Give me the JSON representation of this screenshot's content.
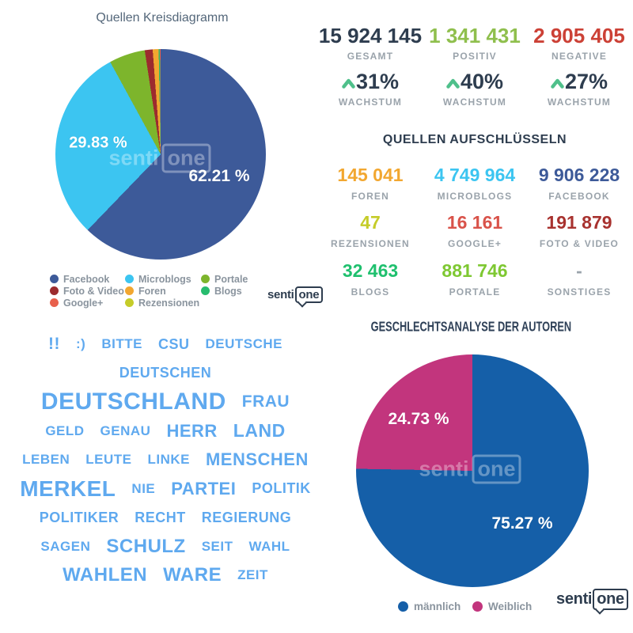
{
  "brand": {
    "part1": "senti",
    "part2": "one"
  },
  "colors": {
    "navy_text": "#2e3d4f",
    "gray_label": "#9aa3ab",
    "wordcloud_blue": "#5fa9ef",
    "growth_chevron": "#4fc08b"
  },
  "sources_chart": {
    "title": "Quellen Kreisdiagramm",
    "slice_labels": {
      "microblogs": "29.83 %",
      "facebook": "62.21 %"
    },
    "slices": [
      {
        "label": "Facebook",
        "pct": 62.21,
        "color": "#3d5a99"
      },
      {
        "label": "Microblogs",
        "pct": 29.83,
        "color": "#3cc5f1"
      },
      {
        "label": "Portale",
        "pct": 5.54,
        "color": "#7db52c"
      },
      {
        "label": "Foto & Video",
        "pct": 1.21,
        "color": "#9c2b2e"
      },
      {
        "label": "Foren",
        "pct": 0.91,
        "color": "#f2a730"
      },
      {
        "label": "Blogs",
        "pct": 0.2,
        "color": "#27bc6e"
      },
      {
        "label": "Google+",
        "pct": 0.1,
        "color": "#e8604c"
      },
      {
        "label": "Rezensionen",
        "pct": 0.0,
        "color": "#c5cc29"
      }
    ],
    "legend": {
      "col1": [
        {
          "label": "Facebook",
          "color": "#3d5a99"
        },
        {
          "label": "Foto & Video",
          "color": "#9c2b2e"
        },
        {
          "label": "Google+",
          "color": "#e8604c"
        }
      ],
      "col2": [
        {
          "label": "Microblogs",
          "color": "#3cc5f1"
        },
        {
          "label": "Foren",
          "color": "#f2a730"
        },
        {
          "label": "Rezensionen",
          "color": "#c5cc29"
        }
      ],
      "col3": [
        {
          "label": "Portale",
          "color": "#7db52c"
        },
        {
          "label": "Blogs",
          "color": "#27bc6e"
        }
      ]
    }
  },
  "stats": {
    "totals": [
      {
        "value": "15 924 145",
        "label": "GESAMT",
        "color": "#2e3d4f"
      },
      {
        "value": "1 341 431",
        "label": "POSITIV",
        "color": "#8fbf4d"
      },
      {
        "value": "2 905 405",
        "label": "NEGATIVE",
        "color": "#cc4136"
      }
    ],
    "growth": [
      {
        "value": "31%",
        "label": "WACHSTUM"
      },
      {
        "value": "40%",
        "label": "WACHSTUM"
      },
      {
        "value": "27%",
        "label": "WACHSTUM"
      }
    ]
  },
  "breakdown": {
    "title": "QUELLEN AUFSCHLÜSSELN",
    "items": [
      {
        "value": "145 041",
        "label": "FOREN",
        "color": "#f2a730"
      },
      {
        "value": "4 749 964",
        "label": "MICROBLOGS",
        "color": "#3cc5f1"
      },
      {
        "value": "9 906 228",
        "label": "FACEBOOK",
        "color": "#3d5a99"
      },
      {
        "value": "47",
        "label": "REZENSIONEN",
        "color": "#c5cc29"
      },
      {
        "value": "16 161",
        "label": "GOOGLE+",
        "color": "#d9534a"
      },
      {
        "value": "191 879",
        "label": "FOTO & VIDEO",
        "color": "#a8322f"
      },
      {
        "value": "32 463",
        "label": "BLOGS",
        "color": "#1fc06e"
      },
      {
        "value": "881 746",
        "label": "PORTALE",
        "color": "#7ec832"
      },
      {
        "value": "-",
        "label": "SONSTIGES",
        "color": "#9aa3ab"
      }
    ]
  },
  "wordcloud": {
    "lines": [
      [
        {
          "t": "!!",
          "s": 21
        },
        {
          "t": ":)",
          "s": 17
        },
        {
          "t": "BITTE",
          "s": 17
        },
        {
          "t": "CSU",
          "s": 18
        },
        {
          "t": "DEUTSCHE",
          "s": 17
        }
      ],
      [
        {
          "t": "DEUTSCHEN",
          "s": 18
        }
      ],
      [
        {
          "t": "DEUTSCHLAND",
          "s": 30
        },
        {
          "t": "FRAU",
          "s": 21
        }
      ],
      [
        {
          "t": "GELD",
          "s": 17
        },
        {
          "t": "GENAU",
          "s": 17
        },
        {
          "t": "HERR",
          "s": 22
        },
        {
          "t": "LAND",
          "s": 23
        }
      ],
      [
        {
          "t": "LEBEN",
          "s": 17
        },
        {
          "t": "LEUTE",
          "s": 17
        },
        {
          "t": "LINKE",
          "s": 17
        },
        {
          "t": "MENSCHEN",
          "s": 22
        }
      ],
      [
        {
          "t": "MERKEL",
          "s": 28
        },
        {
          "t": "NIE",
          "s": 17
        },
        {
          "t": "PARTEI",
          "s": 22
        },
        {
          "t": "POLITIK",
          "s": 18
        }
      ],
      [
        {
          "t": "POLITIKER",
          "s": 18
        },
        {
          "t": "RECHT",
          "s": 18
        },
        {
          "t": "REGIERUNG",
          "s": 18
        }
      ],
      [
        {
          "t": "SAGEN",
          "s": 17
        },
        {
          "t": "SCHULZ",
          "s": 24
        },
        {
          "t": "SEIT",
          "s": 17
        },
        {
          "t": "WAHL",
          "s": 17
        }
      ],
      [
        {
          "t": "WAHLEN",
          "s": 24
        },
        {
          "t": "WARE",
          "s": 24
        },
        {
          "t": "ZEIT",
          "s": 17
        }
      ]
    ]
  },
  "gender_chart": {
    "title": "GESCHLECHTSANALYSE DER AUTOREN",
    "slice_labels": {
      "male": "75.27 %",
      "female": "24.73 %"
    },
    "slices": [
      {
        "label": "männlich",
        "pct": 75.27,
        "color": "#155fa8"
      },
      {
        "label": "Weiblich",
        "pct": 24.73,
        "color": "#c2357d"
      }
    ],
    "legend": [
      {
        "label": "männlich",
        "color": "#155fa8"
      },
      {
        "label": "Weiblich",
        "color": "#c2357d"
      }
    ]
  },
  "chart_data": [
    {
      "type": "pie",
      "title": "Quellen Kreisdiagramm",
      "categories": [
        "Facebook",
        "Microblogs",
        "Portale",
        "Foto & Video",
        "Foren",
        "Blogs",
        "Google+",
        "Rezensionen"
      ],
      "values": [
        62.21,
        29.83,
        5.54,
        1.21,
        0.91,
        0.2,
        0.1,
        0.0003
      ],
      "unit": "%",
      "legend_position": "bottom",
      "visible_labels": [
        "62.21 %",
        "29.83 %"
      ]
    },
    {
      "type": "pie",
      "title": "GESCHLECHTSANALYSE DER AUTOREN",
      "categories": [
        "männlich",
        "Weiblich"
      ],
      "values": [
        75.27,
        24.73
      ],
      "unit": "%",
      "legend_position": "bottom",
      "visible_labels": [
        "75.27 %",
        "24.73 %"
      ]
    },
    {
      "type": "table",
      "title": "QUELLEN AUFSCHLÜSSELN",
      "categories": [
        "GESAMT",
        "POSITIV",
        "NEGATIVE",
        "WACHSTUM GESAMT",
        "WACHSTUM POSITIV",
        "WACHSTUM NEGATIVE",
        "FOREN",
        "MICROBLOGS",
        "FACEBOOK",
        "REZENSIONEN",
        "GOOGLE+",
        "FOTO & VIDEO",
        "BLOGS",
        "PORTALE",
        "SONSTIGES"
      ],
      "values": [
        15924145,
        1341431,
        2905405,
        31,
        40,
        27,
        145041,
        4749964,
        9906228,
        47,
        16161,
        191879,
        32463,
        881746,
        null
      ]
    }
  ]
}
